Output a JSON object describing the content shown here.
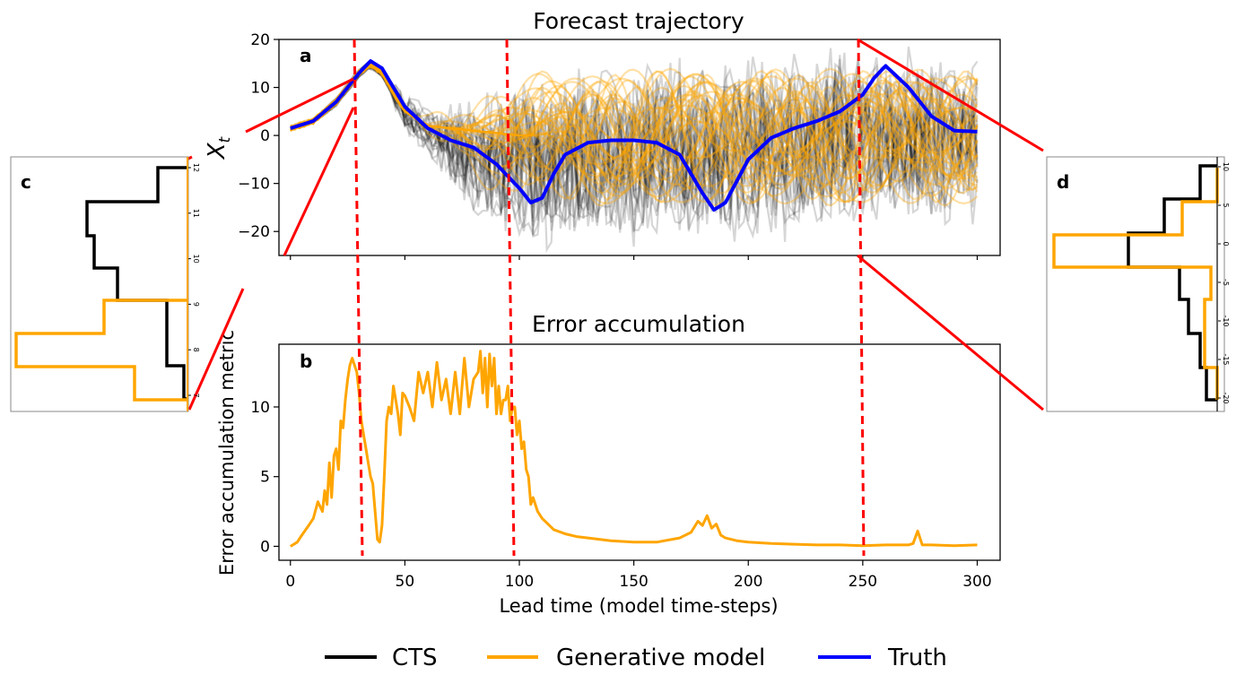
{
  "chart_data": [
    {
      "panel": "a",
      "type": "line",
      "title": "Forecast trajectory",
      "ylabel": "X_t",
      "xlim": [
        -5,
        310
      ],
      "ylim": [
        -25,
        20
      ],
      "yticks": [
        20,
        10,
        0,
        -10,
        -20
      ],
      "series": [
        {
          "name": "Truth",
          "x": [
            0,
            10,
            20,
            30,
            35,
            40,
            50,
            60,
            70,
            80,
            90,
            100,
            105,
            110,
            115,
            120,
            130,
            140,
            150,
            160,
            170,
            180,
            185,
            190,
            200,
            210,
            220,
            230,
            240,
            250,
            255,
            260,
            270,
            280,
            290,
            300
          ],
          "y": [
            1.5,
            3,
            7,
            13,
            15.5,
            14,
            6,
            1.5,
            -1,
            -2.5,
            -6,
            -11,
            -14,
            -13,
            -8,
            -4,
            -1.5,
            -1,
            -1,
            -1.5,
            -4,
            -12,
            -15.5,
            -14,
            -5,
            -0.5,
            1.5,
            3,
            5,
            8.5,
            12,
            14.5,
            10,
            4,
            1,
            0.8
          ]
        },
        {
          "name": "Generative model",
          "mean_x": [
            0,
            10,
            20,
            30,
            35,
            40,
            50,
            60,
            80,
            100,
            150,
            200,
            250,
            300
          ],
          "mean_y": [
            1.5,
            3,
            7,
            13,
            15,
            13,
            5,
            2,
            1,
            0,
            0,
            0,
            0,
            0
          ],
          "envelope_upper": [
            2,
            4,
            9,
            15,
            16,
            15,
            9,
            6,
            12,
            14,
            15,
            15,
            15,
            15
          ],
          "envelope_lower": [
            1,
            2,
            5,
            11,
            13,
            11,
            2,
            -1,
            -6,
            -12,
            -14,
            -14,
            -14,
            -14
          ]
        },
        {
          "name": "CTS",
          "mean_x": [
            0,
            10,
            20,
            30,
            35,
            40,
            50,
            60,
            80,
            100,
            150,
            200,
            250,
            300
          ],
          "mean_y": [
            1.5,
            3,
            7,
            13,
            15,
            13,
            5,
            1,
            -4,
            -5,
            -3,
            -2,
            0,
            0
          ],
          "envelope_upper": [
            2,
            4,
            9,
            15,
            17,
            15,
            8,
            5,
            8,
            12,
            12,
            13,
            13,
            13
          ],
          "envelope_lower": [
            1,
            2,
            5,
            11,
            13,
            11,
            1,
            -4,
            -15,
            -20,
            -22,
            -22,
            -20,
            -18
          ]
        }
      ]
    },
    {
      "panel": "b",
      "type": "line",
      "title": "Error accumulation",
      "xlabel": "Lead time (model time-steps)",
      "ylabel": "Error accumulation metric",
      "xlim": [
        -5,
        310
      ],
      "ylim": [
        -1,
        14.5
      ],
      "xticks": [
        0,
        50,
        100,
        150,
        200,
        250,
        300
      ],
      "yticks": [
        0,
        5,
        10
      ],
      "series": [
        {
          "name": "Generative model",
          "x": [
            0,
            3,
            5,
            8,
            10,
            12,
            14,
            15,
            16,
            17,
            18,
            19,
            20,
            21,
            22,
            23,
            24,
            25,
            26,
            27,
            28,
            29,
            30,
            31,
            32,
            33,
            34,
            35,
            36,
            37,
            38,
            39,
            40,
            41,
            42,
            43,
            44,
            45,
            46,
            47,
            48,
            49,
            50,
            52,
            54,
            56,
            58,
            60,
            62,
            64,
            66,
            68,
            70,
            72,
            74,
            76,
            78,
            80,
            82,
            83,
            84,
            85,
            86,
            87,
            88,
            89,
            90,
            91,
            92,
            93,
            94,
            95,
            96,
            97,
            98,
            99,
            100,
            101,
            102,
            103,
            104,
            105,
            106,
            108,
            110,
            115,
            120,
            125,
            130,
            140,
            150,
            160,
            170,
            175,
            178,
            180,
            182,
            184,
            186,
            188,
            190,
            195,
            200,
            210,
            220,
            230,
            240,
            250,
            260,
            270,
            272,
            274,
            276,
            280,
            290,
            300
          ],
          "y": [
            0,
            0.3,
            0.8,
            1.5,
            2,
            3.2,
            2.5,
            4,
            3,
            6,
            3.5,
            6.5,
            7,
            5.5,
            9,
            8.5,
            10.5,
            12,
            13,
            13.5,
            13,
            12.5,
            11,
            9,
            8,
            7,
            6,
            5,
            4.5,
            2.5,
            0.5,
            0.3,
            1.5,
            5,
            9,
            10,
            9.5,
            11.5,
            10.5,
            9.5,
            8,
            11,
            10.8,
            10,
            9,
            12.5,
            11,
            12.5,
            10,
            13.2,
            10.5,
            12,
            9.5,
            12.5,
            9.5,
            13.5,
            10,
            12,
            12.5,
            14,
            11,
            13.5,
            10,
            13.8,
            11.5,
            13.5,
            9.5,
            11.5,
            9.5,
            10.5,
            10.5,
            11.5,
            9,
            10,
            10,
            8,
            9,
            7,
            7.5,
            5.5,
            5,
            3,
            3.5,
            2.5,
            2,
            1.2,
            0.9,
            0.7,
            0.6,
            0.4,
            0.3,
            0.3,
            0.6,
            1,
            1.8,
            1.5,
            2.2,
            1.3,
            1.6,
            0.8,
            0.6,
            0.4,
            0.3,
            0.2,
            0.15,
            0.1,
            0.1,
            0.05,
            0.1,
            0.1,
            0.2,
            1.1,
            0.1,
            0.1,
            0.05,
            0.1
          ]
        }
      ]
    }
  ],
  "insets": {
    "c": {
      "label": "c",
      "yticks": [
        "12",
        "11",
        "10",
        "9",
        "8",
        "7"
      ]
    },
    "d": {
      "label": "d",
      "yticks": [
        "10",
        "5",
        "0",
        "-5",
        "-10",
        "-15",
        "-20"
      ]
    }
  },
  "markers": {
    "lead_times": [
      25,
      93,
      248
    ],
    "color": "#ff0000"
  },
  "legend": {
    "position": "bottom",
    "entries": [
      {
        "label": "CTS",
        "color": "#000000"
      },
      {
        "label": "Generative model",
        "color": "#ffa500"
      },
      {
        "label": "Truth",
        "color": "#0000ff"
      }
    ]
  }
}
